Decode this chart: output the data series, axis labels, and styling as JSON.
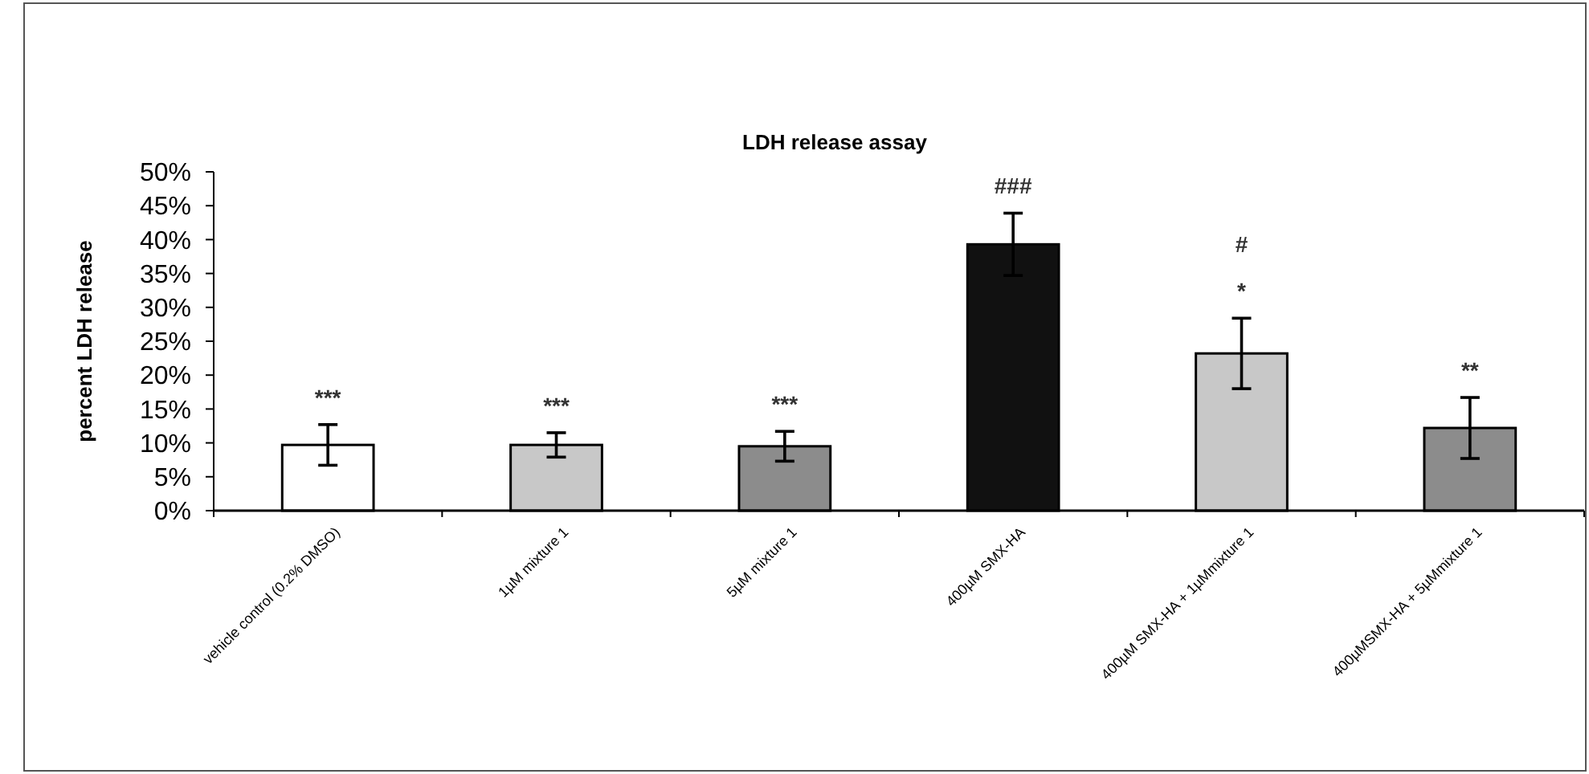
{
  "chart_data": {
    "type": "bar",
    "title": "LDH release assay",
    "ylabel": "percent LDH release",
    "categories": [
      "vehicle control (0.2% DMSO)",
      "1µM mixture 1",
      "5µM mixture 1",
      "400µM SMX-HA",
      "400µM SMX-HA + 1µMmixture 1",
      "400µMSMX-HA + 5µMmixture 1"
    ],
    "values": [
      9.7,
      9.7,
      9.5,
      39.3,
      23.2,
      12.2
    ],
    "colors": [
      "#ffffff",
      "#c8c8c8",
      "#8c8c8c",
      "#111111",
      "#c8c8c8",
      "#8c8c8c"
    ],
    "errors": [
      3,
      1.8,
      2.2,
      4.6,
      5.2,
      4.5
    ],
    "ylim": [
      0,
      50
    ],
    "yticks": [
      {
        "value": 0,
        "label": "0%"
      },
      {
        "value": 5,
        "label": "5%"
      },
      {
        "value": 10,
        "label": "10%"
      },
      {
        "value": 15,
        "label": "15%"
      },
      {
        "value": 20,
        "label": "20%"
      },
      {
        "value": 25,
        "label": "25%"
      },
      {
        "value": 30,
        "label": "30%"
      },
      {
        "value": 35,
        "label": "35%"
      },
      {
        "value": 40,
        "label": "40%"
      },
      {
        "value": 45,
        "label": "45%"
      },
      {
        "value": 50,
        "label": "50%"
      }
    ],
    "annotations": [
      {
        "text": "***",
        "x": "vehicle control (0.2% DMSO)",
        "y": 12.7
      },
      {
        "text": "***",
        "x": "1µM mixture 1",
        "y": 11.5
      },
      {
        "text": "***",
        "x": "5µM mixture 1",
        "y": 11.7
      },
      {
        "text": "###",
        "x": "400µM SMX-HA",
        "y": 43.9
      },
      {
        "text": "*",
        "x": "400µM SMX-HA + 1µMmixture 1",
        "y": 28.4
      },
      {
        "text": "#",
        "x": "400µM SMX-HA + 1µMmixture 1",
        "y": 28.4
      },
      {
        "text": "**",
        "x": "400µMSMX-HA + 5µMmixture 1",
        "y": 16.7
      }
    ]
  }
}
